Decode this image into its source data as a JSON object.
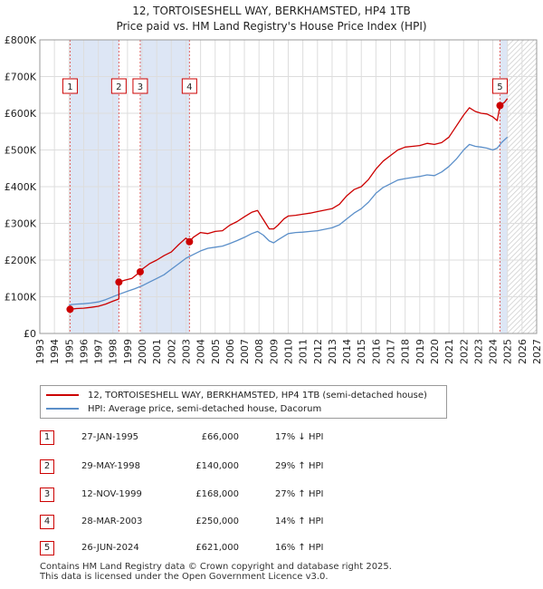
{
  "header": {
    "title": "12, TORTOISESHELL WAY, BERKHAMSTED, HP4 1TB",
    "subtitle": "Price paid vs. HM Land Registry's House Price Index (HPI)"
  },
  "colors": {
    "price_line": "#cc0000",
    "hpi_line": "#5b8fc9",
    "shade": "#dde6f5",
    "grid": "#dddddd",
    "marker_border": "#cc0000",
    "vline": "#e06060"
  },
  "chart_data": {
    "type": "line",
    "title": "12, TORTOISESHELL WAY, BERKHAMSTED, HP4 1TB",
    "subtitle": "Price paid vs. HM Land Registry's House Price Index (HPI)",
    "xlim": [
      1993,
      2027
    ],
    "ylim": [
      0,
      800000
    ],
    "x_ticks": [
      1993,
      1994,
      1995,
      1996,
      1997,
      1998,
      1999,
      2000,
      2001,
      2002,
      2003,
      2004,
      2005,
      2006,
      2007,
      2008,
      2009,
      2010,
      2011,
      2012,
      2013,
      2014,
      2015,
      2016,
      2017,
      2018,
      2019,
      2020,
      2021,
      2022,
      2023,
      2024,
      2025,
      2026,
      2027
    ],
    "y_ticks": [
      {
        "value": 0,
        "label": "£0"
      },
      {
        "value": 100000,
        "label": "£100K"
      },
      {
        "value": 200000,
        "label": "£200K"
      },
      {
        "value": 300000,
        "label": "£300K"
      },
      {
        "value": 400000,
        "label": "£400K"
      },
      {
        "value": 500000,
        "label": "£500K"
      },
      {
        "value": 600000,
        "label": "£600K"
      },
      {
        "value": 700000,
        "label": "£700K"
      },
      {
        "value": 800000,
        "label": "£800K"
      }
    ],
    "shaded_ranges": [
      [
        1995.07,
        1998.41
      ],
      [
        1999.87,
        2003.24
      ],
      [
        2024.49,
        2025.0
      ]
    ],
    "future_hatch_from": 2025.0,
    "series": [
      {
        "name": "12, TORTOISESHELL WAY, BERKHAMSTED, HP4 1TB (semi-detached house)",
        "color": "#cc0000",
        "x": [
          1995.07,
          1995.5,
          1996.0,
          1996.5,
          1997.0,
          1997.5,
          1998.0,
          1998.41,
          1998.41,
          1998.8,
          1999.3,
          1999.87,
          2000.0,
          2000.5,
          2001.0,
          2001.5,
          2002.0,
          2002.5,
          2003.0,
          2003.24,
          2003.5,
          2004.0,
          2004.5,
          2005.0,
          2005.5,
          2006.0,
          2006.5,
          2007.0,
          2007.5,
          2007.9,
          2008.3,
          2008.7,
          2009.0,
          2009.3,
          2009.7,
          2010.0,
          2010.5,
          2011.0,
          2011.5,
          2012.0,
          2012.5,
          2013.0,
          2013.5,
          2014.0,
          2014.5,
          2015.0,
          2015.5,
          2016.0,
          2016.5,
          2017.0,
          2017.5,
          2018.0,
          2018.5,
          2019.0,
          2019.5,
          2020.0,
          2020.5,
          2021.0,
          2021.5,
          2022.0,
          2022.4,
          2022.8,
          2023.2,
          2023.6,
          2024.0,
          2024.3,
          2024.49,
          2024.8,
          2025.0
        ],
        "values": [
          66000,
          68000,
          69000,
          71000,
          74000,
          80000,
          88000,
          94000,
          140000,
          145000,
          150000,
          168000,
          175000,
          190000,
          200000,
          212000,
          222000,
          242000,
          260000,
          250000,
          262000,
          275000,
          272000,
          278000,
          280000,
          295000,
          305000,
          318000,
          330000,
          335000,
          310000,
          285000,
          285000,
          295000,
          312000,
          320000,
          322000,
          325000,
          328000,
          332000,
          336000,
          340000,
          352000,
          375000,
          392000,
          400000,
          420000,
          448000,
          470000,
          485000,
          500000,
          508000,
          510000,
          512000,
          518000,
          515000,
          520000,
          535000,
          565000,
          595000,
          615000,
          605000,
          600000,
          598000,
          590000,
          580000,
          621000,
          630000,
          640000
        ]
      },
      {
        "name": "HPI: Average price, semi-detached house, Dacorum",
        "color": "#5b8fc9",
        "x": [
          1995.0,
          1995.5,
          1996.0,
          1996.5,
          1997.0,
          1997.5,
          1998.0,
          1998.5,
          1999.0,
          1999.5,
          2000.0,
          2000.5,
          2001.0,
          2001.5,
          2002.0,
          2002.5,
          2003.0,
          2003.5,
          2004.0,
          2004.5,
          2005.0,
          2005.5,
          2006.0,
          2006.5,
          2007.0,
          2007.5,
          2007.9,
          2008.3,
          2008.7,
          2009.0,
          2009.3,
          2009.7,
          2010.0,
          2010.5,
          2011.0,
          2011.5,
          2012.0,
          2012.5,
          2013.0,
          2013.5,
          2014.0,
          2014.5,
          2015.0,
          2015.5,
          2016.0,
          2016.5,
          2017.0,
          2017.5,
          2018.0,
          2018.5,
          2019.0,
          2019.5,
          2020.0,
          2020.5,
          2021.0,
          2021.5,
          2022.0,
          2022.4,
          2022.8,
          2023.2,
          2023.6,
          2024.0,
          2024.3,
          2024.6,
          2025.0
        ],
        "values": [
          78000,
          80000,
          81000,
          83000,
          86000,
          92000,
          100000,
          108000,
          115000,
          122000,
          130000,
          140000,
          150000,
          160000,
          175000,
          190000,
          205000,
          215000,
          225000,
          232000,
          235000,
          238000,
          245000,
          253000,
          262000,
          272000,
          278000,
          268000,
          252000,
          247000,
          255000,
          265000,
          272000,
          275000,
          276000,
          278000,
          280000,
          284000,
          288000,
          296000,
          312000,
          328000,
          340000,
          358000,
          382000,
          398000,
          408000,
          418000,
          422000,
          425000,
          428000,
          432000,
          430000,
          440000,
          455000,
          475000,
          500000,
          515000,
          510000,
          508000,
          505000,
          500000,
          505000,
          520000,
          535000
        ]
      }
    ],
    "sales": [
      {
        "num": "1",
        "x": 1995.07,
        "value": 66000
      },
      {
        "num": "2",
        "x": 1998.41,
        "value": 140000
      },
      {
        "num": "3",
        "x": 1999.87,
        "value": 168000
      },
      {
        "num": "4",
        "x": 2003.24,
        "value": 250000
      },
      {
        "num": "5",
        "x": 2024.49,
        "value": 621000
      }
    ]
  },
  "legend": {
    "price_label": "12, TORTOISESHELL WAY, BERKHAMSTED, HP4 1TB (semi-detached house)",
    "hpi_label": "HPI: Average price, semi-detached house, Dacorum"
  },
  "transactions": [
    {
      "num": "1",
      "date": "27-JAN-1995",
      "price": "£66,000",
      "hpi": "17% ↓ HPI"
    },
    {
      "num": "2",
      "date": "29-MAY-1998",
      "price": "£140,000",
      "hpi": "29% ↑ HPI"
    },
    {
      "num": "3",
      "date": "12-NOV-1999",
      "price": "£168,000",
      "hpi": "27% ↑ HPI"
    },
    {
      "num": "4",
      "date": "28-MAR-2003",
      "price": "£250,000",
      "hpi": "14% ↑ HPI"
    },
    {
      "num": "5",
      "date": "26-JUN-2024",
      "price": "£621,000",
      "hpi": "16% ↑ HPI"
    }
  ],
  "footer": {
    "line1": "Contains HM Land Registry data © Crown copyright and database right 2025.",
    "line2": "This data is licensed under the Open Government Licence v3.0."
  }
}
